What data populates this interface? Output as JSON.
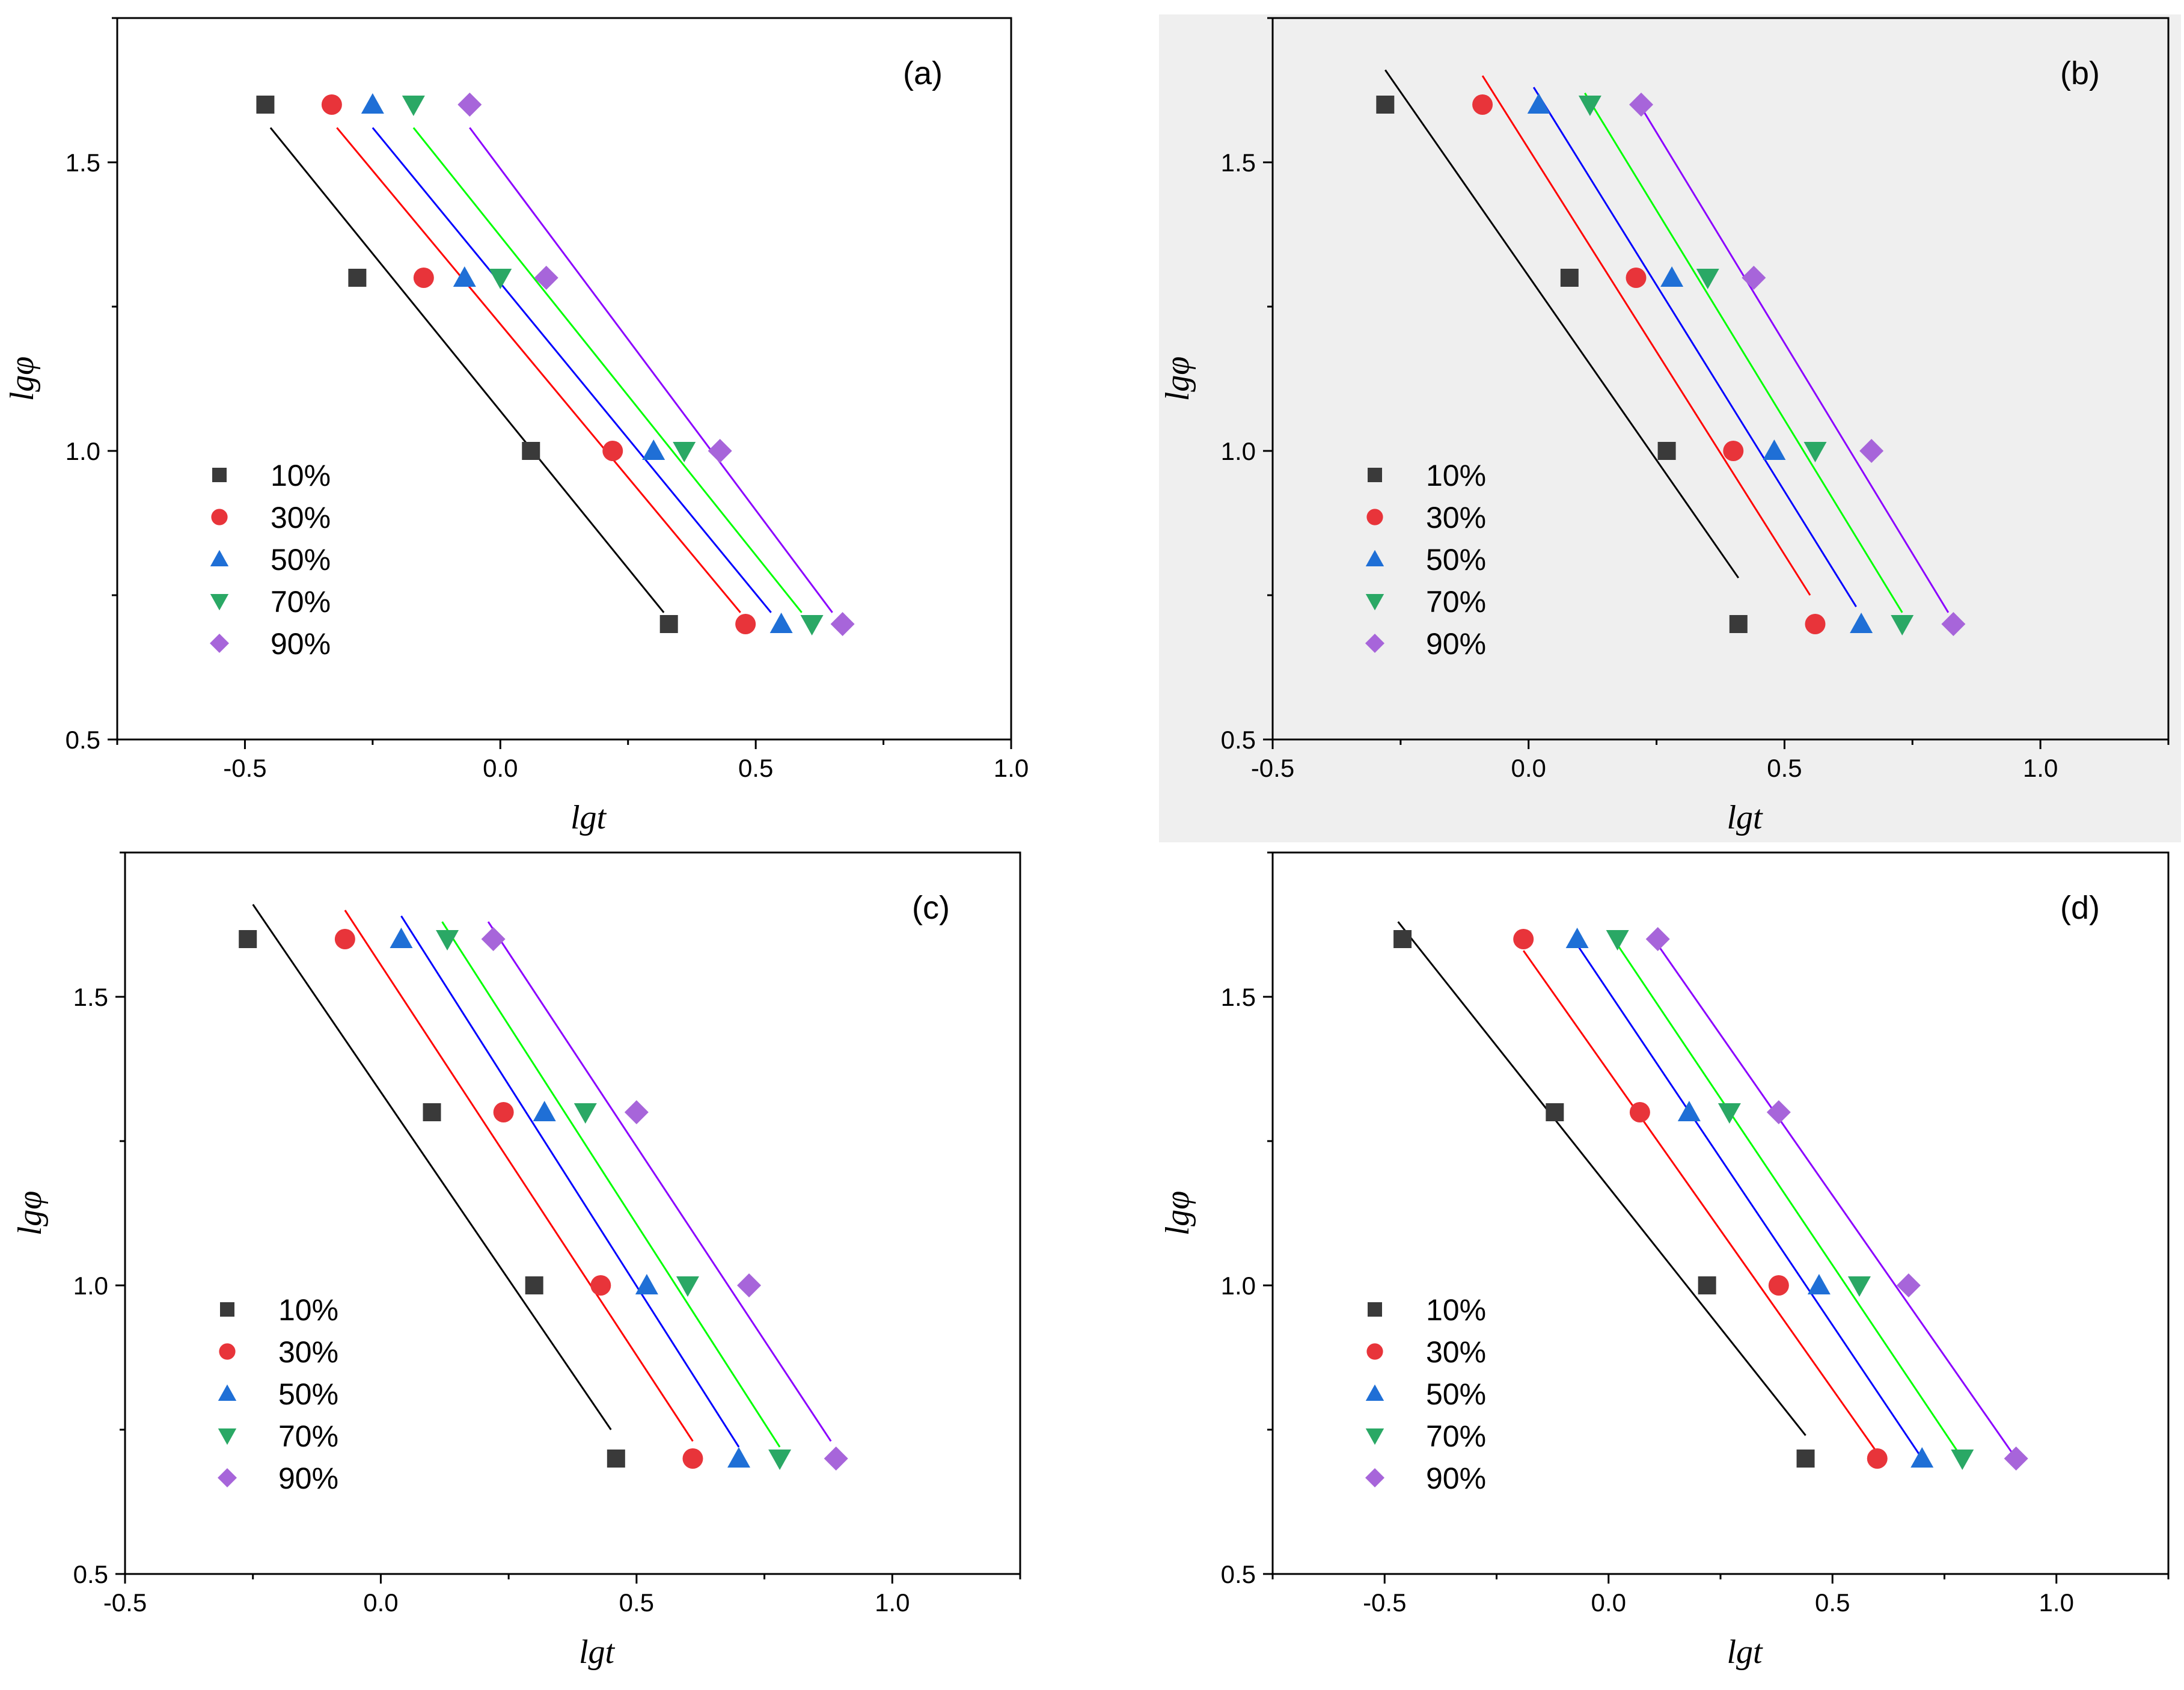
{
  "figure": {
    "colors": {
      "10%": "#3a3a3a",
      "30%": "#e8343a",
      "50%": "#1f6fd6",
      "70%": "#2aa865",
      "90%": "#a765da"
    },
    "line_colors": {
      "10%": "#000000",
      "30%": "#ff0000",
      "50%": "#0000ff",
      "70%": "#00ff00",
      "90%": "#8b00ff"
    },
    "markers": {
      "10%": "square",
      "30%": "circle",
      "50%": "triangle-up",
      "70%": "triangle-down",
      "90%": "diamond"
    }
  },
  "chart_data": [
    {
      "type": "scatter",
      "panel_label": "(a)",
      "xlabel": "lgt",
      "ylabel": "lgφ",
      "xlim": [
        -0.75,
        1.0
      ],
      "ylim": [
        0.5,
        1.75
      ],
      "xticks": [
        "-0.5",
        "0.0",
        "0.5",
        "1.0"
      ],
      "yticks": [
        "0.5",
        "1.0",
        "1.5"
      ],
      "legend": [
        "10%",
        "30%",
        "50%",
        "70%",
        "90%"
      ],
      "series": [
        {
          "name": "10%",
          "x": [
            -0.46,
            -0.28,
            0.06,
            0.33
          ],
          "y": [
            1.6,
            1.3,
            1.0,
            0.7
          ],
          "fit": [
            [
              -0.45,
              1.56
            ],
            [
              0.32,
              0.72
            ]
          ]
        },
        {
          "name": "30%",
          "x": [
            -0.33,
            -0.15,
            0.22,
            0.48
          ],
          "y": [
            1.6,
            1.3,
            1.0,
            0.7
          ],
          "fit": [
            [
              -0.32,
              1.56
            ],
            [
              0.47,
              0.72
            ]
          ]
        },
        {
          "name": "50%",
          "x": [
            -0.25,
            -0.07,
            0.3,
            0.55
          ],
          "y": [
            1.6,
            1.3,
            1.0,
            0.7
          ],
          "fit": [
            [
              -0.25,
              1.56
            ],
            [
              0.53,
              0.72
            ]
          ]
        },
        {
          "name": "70%",
          "x": [
            -0.17,
            0.0,
            0.36,
            0.61
          ],
          "y": [
            1.6,
            1.3,
            1.0,
            0.7
          ],
          "fit": [
            [
              -0.17,
              1.56
            ],
            [
              0.59,
              0.72
            ]
          ]
        },
        {
          "name": "90%",
          "x": [
            -0.06,
            0.09,
            0.43,
            0.67
          ],
          "y": [
            1.6,
            1.3,
            1.0,
            0.7
          ],
          "fit": [
            [
              -0.06,
              1.56
            ],
            [
              0.65,
              0.72
            ]
          ]
        }
      ]
    },
    {
      "type": "scatter",
      "panel_label": "(b)",
      "xlabel": "lgt",
      "ylabel": "lgφ",
      "xlim": [
        -0.5,
        1.25
      ],
      "ylim": [
        0.5,
        1.75
      ],
      "xticks": [
        "-0.5",
        "0.0",
        "0.5",
        "1.0"
      ],
      "yticks": [
        "0.5",
        "1.0",
        "1.5"
      ],
      "legend": [
        "10%",
        "30%",
        "50%",
        "70%",
        "90%"
      ],
      "series": [
        {
          "name": "10%",
          "x": [
            -0.28,
            0.08,
            0.27,
            0.41
          ],
          "y": [
            1.6,
            1.3,
            1.0,
            0.7
          ],
          "fit": [
            [
              -0.28,
              1.66
            ],
            [
              0.41,
              0.78
            ]
          ]
        },
        {
          "name": "30%",
          "x": [
            -0.09,
            0.21,
            0.4,
            0.56
          ],
          "y": [
            1.6,
            1.3,
            1.0,
            0.7
          ],
          "fit": [
            [
              -0.09,
              1.65
            ],
            [
              0.55,
              0.75
            ]
          ]
        },
        {
          "name": "50%",
          "x": [
            0.02,
            0.28,
            0.48,
            0.65
          ],
          "y": [
            1.6,
            1.3,
            1.0,
            0.7
          ],
          "fit": [
            [
              0.01,
              1.63
            ],
            [
              0.64,
              0.73
            ]
          ]
        },
        {
          "name": "70%",
          "x": [
            0.12,
            0.35,
            0.56,
            0.73
          ],
          "y": [
            1.6,
            1.3,
            1.0,
            0.7
          ],
          "fit": [
            [
              0.11,
              1.62
            ],
            [
              0.73,
              0.72
            ]
          ]
        },
        {
          "name": "90%",
          "x": [
            0.22,
            0.44,
            0.67,
            0.83
          ],
          "y": [
            1.6,
            1.3,
            1.0,
            0.7
          ],
          "fit": [
            [
              0.21,
              1.61
            ],
            [
              0.82,
              0.72
            ]
          ]
        }
      ]
    },
    {
      "type": "scatter",
      "panel_label": "(c)",
      "xlabel": "lgt",
      "ylabel": "lgφ",
      "xlim": [
        -0.5,
        1.25
      ],
      "ylim": [
        0.5,
        1.75
      ],
      "xticks": [
        "-0.5",
        "0.0",
        "0.5",
        "1.0"
      ],
      "yticks": [
        "0.5",
        "1.0",
        "1.5"
      ],
      "legend": [
        "10%",
        "30%",
        "50%",
        "70%",
        "90%"
      ],
      "series": [
        {
          "name": "10%",
          "x": [
            -0.26,
            0.1,
            0.3,
            0.46
          ],
          "y": [
            1.6,
            1.3,
            1.0,
            0.7
          ],
          "fit": [
            [
              -0.25,
              1.66
            ],
            [
              0.45,
              0.75
            ]
          ]
        },
        {
          "name": "30%",
          "x": [
            -0.07,
            0.24,
            0.43,
            0.61
          ],
          "y": [
            1.6,
            1.3,
            1.0,
            0.7
          ],
          "fit": [
            [
              -0.07,
              1.65
            ],
            [
              0.61,
              0.73
            ]
          ]
        },
        {
          "name": "50%",
          "x": [
            0.04,
            0.32,
            0.52,
            0.7
          ],
          "y": [
            1.6,
            1.3,
            1.0,
            0.7
          ],
          "fit": [
            [
              0.04,
              1.64
            ],
            [
              0.7,
              0.72
            ]
          ]
        },
        {
          "name": "70%",
          "x": [
            0.13,
            0.4,
            0.6,
            0.78
          ],
          "y": [
            1.6,
            1.3,
            1.0,
            0.7
          ],
          "fit": [
            [
              0.12,
              1.63
            ],
            [
              0.78,
              0.72
            ]
          ]
        },
        {
          "name": "90%",
          "x": [
            0.22,
            0.5,
            0.72,
            0.89
          ],
          "y": [
            1.6,
            1.3,
            1.0,
            0.7
          ],
          "fit": [
            [
              0.21,
              1.63
            ],
            [
              0.88,
              0.73
            ]
          ]
        }
      ]
    },
    {
      "type": "scatter",
      "panel_label": "(d)",
      "xlabel": "lgt",
      "ylabel": "lgφ",
      "xlim": [
        -0.75,
        1.25
      ],
      "ylim": [
        0.5,
        1.75
      ],
      "xticks": [
        "-0.5",
        "0.0",
        "0.5",
        "1.0"
      ],
      "yticks": [
        "0.5",
        "1.0",
        "1.5"
      ],
      "legend": [
        "10%",
        "30%",
        "50%",
        "70%",
        "90%"
      ],
      "series": [
        {
          "name": "10%",
          "x": [
            -0.46,
            -0.12,
            0.22,
            0.44
          ],
          "y": [
            1.6,
            1.3,
            1.0,
            0.7
          ],
          "fit": [
            [
              -0.47,
              1.63
            ],
            [
              0.44,
              0.74
            ]
          ]
        },
        {
          "name": "30%",
          "x": [
            -0.19,
            0.07,
            0.38,
            0.6
          ],
          "y": [
            1.6,
            1.3,
            1.0,
            0.7
          ],
          "fit": [
            [
              -0.19,
              1.58
            ],
            [
              0.6,
              0.71
            ]
          ]
        },
        {
          "name": "50%",
          "x": [
            -0.07,
            0.18,
            0.47,
            0.7
          ],
          "y": [
            1.6,
            1.3,
            1.0,
            0.7
          ],
          "fit": [
            [
              -0.07,
              1.59
            ],
            [
              0.7,
              0.7
            ]
          ]
        },
        {
          "name": "70%",
          "x": [
            0.02,
            0.27,
            0.56,
            0.79
          ],
          "y": [
            1.6,
            1.3,
            1.0,
            0.7
          ],
          "fit": [
            [
              0.02,
              1.59
            ],
            [
              0.79,
              0.7
            ]
          ]
        },
        {
          "name": "90%",
          "x": [
            0.11,
            0.38,
            0.67,
            0.91
          ],
          "y": [
            1.6,
            1.3,
            1.0,
            0.7
          ],
          "fit": [
            [
              0.11,
              1.59
            ],
            [
              0.91,
              0.7
            ]
          ]
        }
      ]
    }
  ]
}
